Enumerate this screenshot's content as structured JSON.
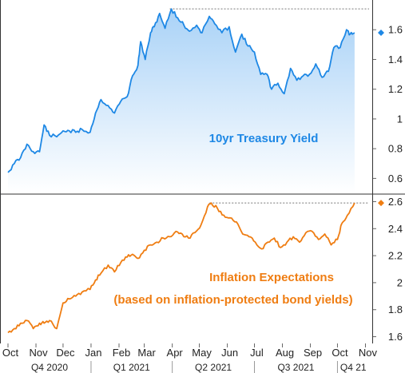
{
  "chart_data": [
    {
      "type": "area",
      "title": "10yr Treasury Yield",
      "color": "#1e88e5",
      "fill_top": "#a9d2f7",
      "fill_bottom": "#ffffff",
      "ylim": [
        0.5,
        1.8
      ],
      "yticks": [
        0.6,
        0.8,
        1,
        1.2,
        1.4,
        1.6
      ],
      "ytick_labels": [
        "0.6",
        "0.8",
        "1",
        "1.2",
        "1.4",
        "1.6"
      ],
      "last_value": 1.58,
      "reference_high": 1.74,
      "points": [
        [
          "2020-10-01",
          0.64
        ],
        [
          "2020-10-08",
          0.7
        ],
        [
          "2020-10-15",
          0.74
        ],
        [
          "2020-10-22",
          0.83
        ],
        [
          "2020-10-29",
          0.78
        ],
        [
          "2020-11-05",
          0.78
        ],
        [
          "2020-11-10",
          0.96
        ],
        [
          "2020-11-16",
          0.89
        ],
        [
          "2020-11-24",
          0.88
        ],
        [
          "2020-12-01",
          0.92
        ],
        [
          "2020-12-08",
          0.92
        ],
        [
          "2020-12-15",
          0.91
        ],
        [
          "2020-12-22",
          0.93
        ],
        [
          "2020-12-31",
          0.91
        ],
        [
          "2021-01-06",
          1.04
        ],
        [
          "2021-01-12",
          1.13
        ],
        [
          "2021-01-20",
          1.09
        ],
        [
          "2021-01-27",
          1.04
        ],
        [
          "2021-02-03",
          1.12
        ],
        [
          "2021-02-10",
          1.15
        ],
        [
          "2021-02-16",
          1.29
        ],
        [
          "2021-02-22",
          1.36
        ],
        [
          "2021-02-25",
          1.52
        ],
        [
          "2021-03-02",
          1.4
        ],
        [
          "2021-03-08",
          1.58
        ],
        [
          "2021-03-12",
          1.62
        ],
        [
          "2021-03-18",
          1.71
        ],
        [
          "2021-03-24",
          1.61
        ],
        [
          "2021-03-31",
          1.74
        ],
        [
          "2021-04-07",
          1.68
        ],
        [
          "2021-04-14",
          1.63
        ],
        [
          "2021-04-20",
          1.59
        ],
        [
          "2021-04-28",
          1.63
        ],
        [
          "2021-05-04",
          1.58
        ],
        [
          "2021-05-12",
          1.69
        ],
        [
          "2021-05-18",
          1.64
        ],
        [
          "2021-05-26",
          1.58
        ],
        [
          "2021-06-03",
          1.62
        ],
        [
          "2021-06-10",
          1.45
        ],
        [
          "2021-06-17",
          1.57
        ],
        [
          "2021-06-24",
          1.49
        ],
        [
          "2021-07-01",
          1.45
        ],
        [
          "2021-07-08",
          1.3
        ],
        [
          "2021-07-15",
          1.3
        ],
        [
          "2021-07-20",
          1.2
        ],
        [
          "2021-07-27",
          1.24
        ],
        [
          "2021-08-03",
          1.17
        ],
        [
          "2021-08-10",
          1.34
        ],
        [
          "2021-08-17",
          1.26
        ],
        [
          "2021-08-24",
          1.29
        ],
        [
          "2021-08-31",
          1.3
        ],
        [
          "2021-09-07",
          1.37
        ],
        [
          "2021-09-14",
          1.28
        ],
        [
          "2021-09-21",
          1.32
        ],
        [
          "2021-09-27",
          1.48
        ],
        [
          "2021-10-04",
          1.48
        ],
        [
          "2021-10-11",
          1.6
        ],
        [
          "2021-10-15",
          1.57
        ],
        [
          "2021-10-20",
          1.58
        ]
      ]
    },
    {
      "type": "line",
      "title": "Inflation Expectations",
      "subtitle": "(based on inflation-protected bond yields)",
      "color": "#ef7d12",
      "ylim": [
        1.55,
        2.65
      ],
      "yticks": [
        1.6,
        1.8,
        2,
        2.2,
        2.4,
        2.6
      ],
      "ytick_labels": [
        "1.6",
        "1.8",
        "2",
        "2.2",
        "2.4",
        "2.6"
      ],
      "last_value": 2.59,
      "reference_high": 2.59,
      "points": [
        [
          "2020-10-01",
          1.63
        ],
        [
          "2020-10-08",
          1.66
        ],
        [
          "2020-10-15",
          1.7
        ],
        [
          "2020-10-22",
          1.72
        ],
        [
          "2020-10-29",
          1.66
        ],
        [
          "2020-11-05",
          1.7
        ],
        [
          "2020-11-10",
          1.7
        ],
        [
          "2020-11-16",
          1.72
        ],
        [
          "2020-11-24",
          1.66
        ],
        [
          "2020-12-01",
          1.85
        ],
        [
          "2020-12-08",
          1.88
        ],
        [
          "2020-12-15",
          1.9
        ],
        [
          "2020-12-22",
          1.93
        ],
        [
          "2020-12-31",
          1.95
        ],
        [
          "2021-01-06",
          2.02
        ],
        [
          "2021-01-12",
          2.07
        ],
        [
          "2021-01-20",
          2.13
        ],
        [
          "2021-01-27",
          2.08
        ],
        [
          "2021-02-03",
          2.15
        ],
        [
          "2021-02-10",
          2.19
        ],
        [
          "2021-02-16",
          2.21
        ],
        [
          "2021-02-22",
          2.18
        ],
        [
          "2021-03-01",
          2.24
        ],
        [
          "2021-03-08",
          2.28
        ],
        [
          "2021-03-15",
          2.3
        ],
        [
          "2021-03-22",
          2.33
        ],
        [
          "2021-03-29",
          2.34
        ],
        [
          "2021-04-05",
          2.38
        ],
        [
          "2021-04-12",
          2.36
        ],
        [
          "2021-04-19",
          2.33
        ],
        [
          "2021-04-26",
          2.37
        ],
        [
          "2021-05-03",
          2.43
        ],
        [
          "2021-05-10",
          2.56
        ],
        [
          "2021-05-14",
          2.59
        ],
        [
          "2021-05-21",
          2.55
        ],
        [
          "2021-05-28",
          2.5
        ],
        [
          "2021-06-04",
          2.48
        ],
        [
          "2021-06-11",
          2.45
        ],
        [
          "2021-06-18",
          2.36
        ],
        [
          "2021-06-25",
          2.34
        ],
        [
          "2021-07-02",
          2.3
        ],
        [
          "2021-07-09",
          2.25
        ],
        [
          "2021-07-16",
          2.3
        ],
        [
          "2021-07-23",
          2.33
        ],
        [
          "2021-07-30",
          2.26
        ],
        [
          "2021-08-06",
          2.3
        ],
        [
          "2021-08-13",
          2.34
        ],
        [
          "2021-08-20",
          2.3
        ],
        [
          "2021-08-27",
          2.37
        ],
        [
          "2021-09-03",
          2.38
        ],
        [
          "2021-09-10",
          2.32
        ],
        [
          "2021-09-17",
          2.36
        ],
        [
          "2021-09-24",
          2.28
        ],
        [
          "2021-10-01",
          2.32
        ],
        [
          "2021-10-06",
          2.44
        ],
        [
          "2021-10-12",
          2.5
        ],
        [
          "2021-10-20",
          2.59
        ]
      ]
    }
  ],
  "x_axis": {
    "months": [
      {
        "label": "Oct",
        "date": "2020-10-01"
      },
      {
        "label": "Nov",
        "date": "2020-11-01"
      },
      {
        "label": "Dec",
        "date": "2020-12-01"
      },
      {
        "label": "Jan",
        "date": "2021-01-01"
      },
      {
        "label": "Feb",
        "date": "2021-02-01"
      },
      {
        "label": "Mar",
        "date": "2021-03-01"
      },
      {
        "label": "Apr",
        "date": "2021-04-01"
      },
      {
        "label": "May",
        "date": "2021-05-01"
      },
      {
        "label": "Jun",
        "date": "2021-06-01"
      },
      {
        "label": "Jul",
        "date": "2021-07-01"
      },
      {
        "label": "Aug",
        "date": "2021-08-01"
      },
      {
        "label": "Sep",
        "date": "2021-09-01"
      },
      {
        "label": "Oct",
        "date": "2021-10-01"
      },
      {
        "label": "Nov",
        "date": "2021-11-01"
      }
    ],
    "quarters": [
      {
        "label": "Q4 2020",
        "start": "2020-10-01",
        "end": "2021-01-01"
      },
      {
        "label": "Q1 2021",
        "start": "2021-01-01",
        "end": "2021-04-01"
      },
      {
        "label": "Q2 2021",
        "start": "2021-04-01",
        "end": "2021-07-01"
      },
      {
        "label": "Q3 2021",
        "start": "2021-07-01",
        "end": "2021-10-01"
      },
      {
        "label": "Q4 21",
        "start": "2021-10-01",
        "end": "2021-11-05"
      }
    ]
  }
}
